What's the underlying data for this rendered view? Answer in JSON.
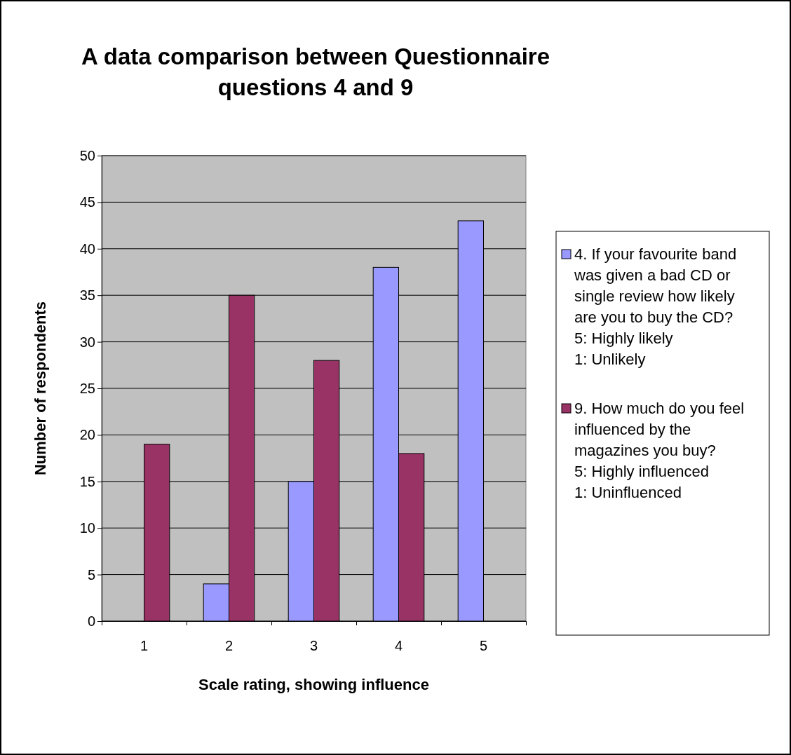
{
  "chart_data": {
    "type": "bar",
    "title": "A data comparison between Questionnaire questions 4 and 9",
    "xlabel": "Scale rating, showing influence",
    "ylabel": "Number of respondents",
    "categories": [
      "1",
      "2",
      "3",
      "4",
      "5"
    ],
    "series": [
      {
        "name": "4. If your favourite band was given a bad CD or single review how likely are you to buy the CD? 5: Highly likely 1: Unlikely",
        "color": "#9999ff",
        "values": [
          0,
          4,
          15,
          38,
          43
        ]
      },
      {
        "name": "9. How much do you feel influenced by the magazines you buy? 5: Highly influenced 1: Uninfluenced",
        "color": "#993366",
        "values": [
          19,
          35,
          28,
          18,
          0
        ]
      }
    ],
    "ylim": [
      0,
      50
    ],
    "yticks": [
      0,
      5,
      10,
      15,
      20,
      25,
      30,
      35,
      40,
      45,
      50
    ],
    "grid": "y",
    "legend": "right"
  }
}
